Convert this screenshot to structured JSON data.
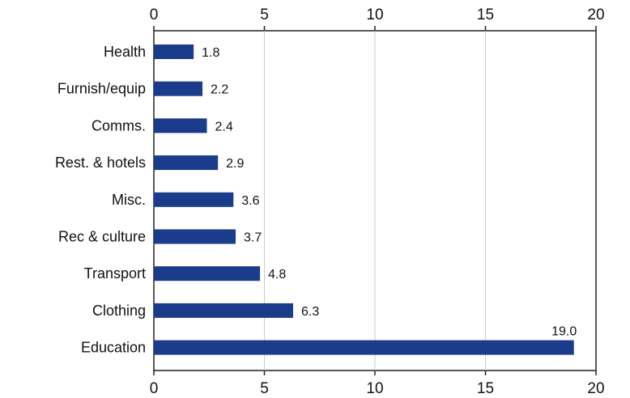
{
  "chart_data": {
    "type": "bar",
    "orientation": "horizontal",
    "categories": [
      "Health",
      "Furnish/equip",
      "Comms.",
      "Rest. & hotels",
      "Misc.",
      "Rec & culture",
      "Transport",
      "Clothing",
      "Education"
    ],
    "values": [
      1.8,
      2.2,
      2.4,
      2.9,
      3.6,
      3.7,
      4.8,
      6.3,
      19.0
    ],
    "data_labels": [
      "1.8",
      "2.2",
      "2.4",
      "2.9",
      "3.6",
      "3.7",
      "4.8",
      "6.3",
      "19.0"
    ],
    "xlim": [
      0,
      20
    ],
    "x_ticks": [
      0,
      5,
      10,
      15,
      20
    ],
    "x_tick_labels": [
      "0",
      "5",
      "10",
      "15",
      "20"
    ],
    "axis_top": true,
    "axis_bottom": true,
    "grid": "vertical",
    "bar_color": "#1a3c8a",
    "grid_color": "#cccccc",
    "title": "",
    "xlabel": "",
    "ylabel": ""
  }
}
